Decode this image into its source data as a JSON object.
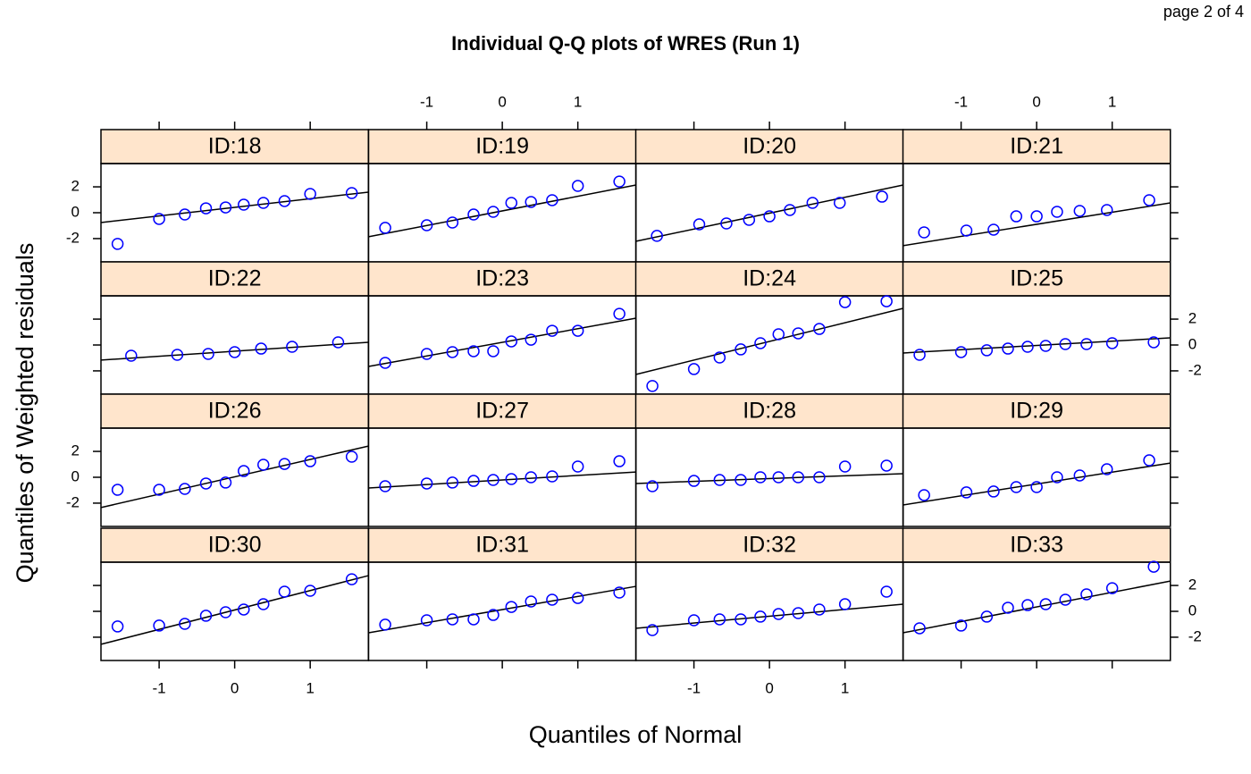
{
  "chart_data": {
    "type": "scatter",
    "page_label": "page 2 of 4",
    "title": "Individual Q-Q plots of WRES (Run 1)",
    "xlabel": "Quantiles of Normal",
    "ylabel": "Quantiles of Weighted residuals",
    "xlim": [
      -1.77,
      1.77
    ],
    "ylim": [
      -3.8,
      3.8
    ],
    "xticks": [
      -1,
      0,
      1
    ],
    "yticks": [
      -2,
      0,
      2
    ],
    "point_color": "#0000ff",
    "line_color": "#000000",
    "strip_color": "#ffe5cc",
    "panels": [
      {
        "name": "ID:18",
        "x": [
          -1.55,
          -1.0,
          -0.66,
          -0.38,
          -0.12,
          0.12,
          0.38,
          0.66,
          1.0,
          1.55
        ],
        "y": [
          -2.41,
          -0.48,
          -0.14,
          0.34,
          0.41,
          0.62,
          0.76,
          0.9,
          1.45,
          1.52
        ],
        "line_y": [
          -0.76,
          1.59
        ]
      },
      {
        "name": "ID:19",
        "x": [
          -1.55,
          -1.0,
          -0.66,
          -0.38,
          -0.12,
          0.12,
          0.38,
          0.66,
          1.0,
          1.55
        ],
        "y": [
          -1.17,
          -0.97,
          -0.76,
          -0.14,
          0.07,
          0.76,
          0.83,
          0.97,
          2.07,
          2.41
        ],
        "line_y": [
          -1.86,
          2.14
        ]
      },
      {
        "name": "ID:20",
        "x": [
          -1.49,
          -0.93,
          -0.57,
          -0.27,
          0,
          0.27,
          0.57,
          0.93,
          1.49
        ],
        "y": [
          -1.79,
          -0.9,
          -0.83,
          -0.55,
          -0.28,
          0.21,
          0.76,
          0.76,
          1.24
        ],
        "line_y": [
          -2.21,
          2.14
        ]
      },
      {
        "name": "ID:21",
        "x": [
          -1.49,
          -0.93,
          -0.57,
          -0.27,
          0,
          0.27,
          0.57,
          0.93,
          1.49
        ],
        "y": [
          -1.52,
          -1.38,
          -1.31,
          -0.28,
          -0.28,
          0.07,
          0.14,
          0.21,
          0.97
        ],
        "line_y": [
          -2.55,
          0.76
        ]
      },
      {
        "name": "ID:22",
        "x": [
          -1.37,
          -0.76,
          -0.35,
          0,
          0.35,
          0.76,
          1.37
        ],
        "y": [
          -0.83,
          -0.76,
          -0.69,
          -0.55,
          -0.28,
          -0.14,
          0.21
        ],
        "line_y": [
          -1.17,
          0.21
        ]
      },
      {
        "name": "ID:23",
        "x": [
          -1.55,
          -1.0,
          -0.66,
          -0.38,
          -0.12,
          0.12,
          0.38,
          0.66,
          1.0,
          1.55
        ],
        "y": [
          -1.38,
          -0.69,
          -0.55,
          -0.48,
          -0.48,
          0.28,
          0.41,
          1.1,
          1.1,
          2.41
        ],
        "line_y": [
          -1.66,
          2.07
        ]
      },
      {
        "name": "ID:24",
        "x": [
          -1.55,
          -1.0,
          -0.66,
          -0.38,
          -0.12,
          0.12,
          0.38,
          0.66,
          1.0,
          1.55
        ],
        "y": [
          -3.17,
          -1.86,
          -0.97,
          -0.34,
          0.14,
          0.83,
          0.9,
          1.24,
          3.31,
          3.38
        ],
        "line_y": [
          -2.28,
          2.83
        ]
      },
      {
        "name": "ID:25",
        "x": [
          -1.55,
          -1.0,
          -0.66,
          -0.38,
          -0.12,
          0.12,
          0.38,
          0.66,
          1.0,
          1.55
        ],
        "y": [
          -0.76,
          -0.55,
          -0.41,
          -0.28,
          -0.14,
          -0.07,
          0.07,
          0.07,
          0.14,
          0.21
        ],
        "line_y": [
          -0.62,
          0.55
        ]
      },
      {
        "name": "ID:26",
        "x": [
          -1.55,
          -1.0,
          -0.66,
          -0.38,
          -0.12,
          0.12,
          0.38,
          0.66,
          1.0,
          1.55
        ],
        "y": [
          -0.97,
          -0.97,
          -0.9,
          -0.48,
          -0.41,
          0.48,
          0.97,
          1.03,
          1.24,
          1.59
        ],
        "line_y": [
          -2.34,
          2.41
        ]
      },
      {
        "name": "ID:27",
        "x": [
          -1.55,
          -1.0,
          -0.66,
          -0.38,
          -0.12,
          0.12,
          0.38,
          0.66,
          1.0,
          1.55
        ],
        "y": [
          -0.69,
          -0.48,
          -0.41,
          -0.28,
          -0.21,
          -0.14,
          0,
          0.07,
          0.83,
          1.24
        ],
        "line_y": [
          -0.83,
          0.41
        ]
      },
      {
        "name": "ID:28",
        "x": [
          -1.55,
          -1.0,
          -0.66,
          -0.38,
          -0.12,
          0.12,
          0.38,
          0.66,
          1.0,
          1.55
        ],
        "y": [
          -0.69,
          -0.28,
          -0.21,
          -0.21,
          0,
          0,
          0,
          0,
          0.83,
          0.9
        ],
        "line_y": [
          -0.48,
          0.28
        ]
      },
      {
        "name": "ID:29",
        "x": [
          -1.49,
          -0.93,
          -0.57,
          -0.27,
          0,
          0.27,
          0.57,
          0.93,
          1.49
        ],
        "y": [
          -1.38,
          -1.17,
          -1.1,
          -0.76,
          -0.76,
          0,
          0.14,
          0.62,
          1.31
        ],
        "line_y": [
          -2.14,
          1.1
        ]
      },
      {
        "name": "ID:30",
        "x": [
          -1.55,
          -1.0,
          -0.66,
          -0.38,
          -0.12,
          0.12,
          0.38,
          0.66,
          1.0,
          1.55
        ],
        "y": [
          -1.17,
          -1.1,
          -0.97,
          -0.34,
          -0.07,
          0.14,
          0.55,
          1.52,
          1.59,
          2.48
        ],
        "line_y": [
          -2.55,
          2.76
        ]
      },
      {
        "name": "ID:31",
        "x": [
          -1.55,
          -1.0,
          -0.66,
          -0.38,
          -0.12,
          0.12,
          0.38,
          0.66,
          1.0,
          1.55
        ],
        "y": [
          -1.03,
          -0.69,
          -0.62,
          -0.62,
          -0.28,
          0.34,
          0.76,
          0.9,
          1.03,
          1.45
        ],
        "line_y": [
          -1.66,
          1.93
        ]
      },
      {
        "name": "ID:32",
        "x": [
          -1.55,
          -1.0,
          -0.66,
          -0.38,
          -0.12,
          0.12,
          0.38,
          0.66,
          1.0,
          1.55
        ],
        "y": [
          -1.45,
          -0.69,
          -0.62,
          -0.62,
          -0.41,
          -0.21,
          -0.14,
          0.14,
          0.55,
          1.52
        ],
        "line_y": [
          -1.31,
          0.55
        ]
      },
      {
        "name": "ID:33",
        "x": [
          -1.55,
          -1.0,
          -0.66,
          -0.38,
          -0.12,
          0.12,
          0.38,
          0.66,
          1.0,
          1.55
        ],
        "y": [
          -1.31,
          -1.1,
          -0.41,
          0.28,
          0.48,
          0.55,
          0.9,
          1.31,
          1.79,
          3.45
        ],
        "line_y": [
          -1.66,
          2.34
        ]
      }
    ]
  }
}
